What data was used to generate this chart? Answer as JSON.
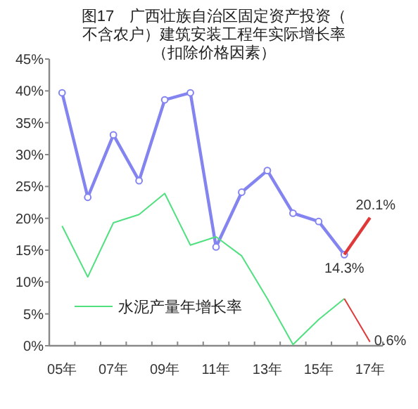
{
  "chart_data": {
    "type": "line",
    "title": "图17　广西壮族自治区固定资产投资（不含农户）建筑安装工程年实际增长率（扣除价格因素）",
    "categories": [
      "05年",
      null,
      "07年",
      null,
      "09年",
      null,
      "11年",
      null,
      "13年",
      null,
      "15年",
      null,
      "17年"
    ],
    "ylim": [
      0,
      45
    ],
    "yticks": [
      {
        "value": 0,
        "label": "0%"
      },
      {
        "value": 5,
        "label": "5%"
      },
      {
        "value": 10,
        "label": "10%"
      },
      {
        "value": 15,
        "label": "15%"
      },
      {
        "value": 20,
        "label": "20%"
      },
      {
        "value": 25,
        "label": "25%"
      },
      {
        "value": 30,
        "label": "30%"
      },
      {
        "value": 35,
        "label": "35%"
      },
      {
        "value": 40,
        "label": "40%"
      },
      {
        "value": 45,
        "label": "45%"
      }
    ],
    "series": [
      {
        "color": "#8484f0",
        "marker": "circle",
        "values": [
          39.7,
          23.3,
          33.1,
          25.9,
          38.6,
          39.7,
          15.5,
          24.1,
          27.5,
          20.8,
          19.5,
          14.3,
          null
        ]
      },
      {
        "color": "#e03838",
        "values": [
          null,
          null,
          null,
          null,
          null,
          null,
          null,
          null,
          null,
          null,
          null,
          14.3,
          20.1
        ],
        "value_labels": [
          null,
          null,
          null,
          null,
          null,
          null,
          null,
          null,
          null,
          null,
          null,
          "14.3%",
          "20.1%"
        ]
      },
      {
        "name": "水泥产量年增长率",
        "color": "#50e080",
        "values": [
          18.8,
          10.8,
          19.3,
          20.6,
          23.9,
          15.8,
          17.1,
          14.1,
          7.4,
          0.2,
          4.1,
          7.4,
          null
        ]
      },
      {
        "color": "#e03838",
        "values": [
          null,
          null,
          null,
          null,
          null,
          null,
          null,
          null,
          null,
          null,
          null,
          7.4,
          0.6
        ],
        "value_labels": [
          null,
          null,
          null,
          null,
          null,
          null,
          null,
          null,
          null,
          null,
          null,
          null,
          "0.6%"
        ]
      }
    ],
    "legend": "bottom left",
    "grid": false
  }
}
